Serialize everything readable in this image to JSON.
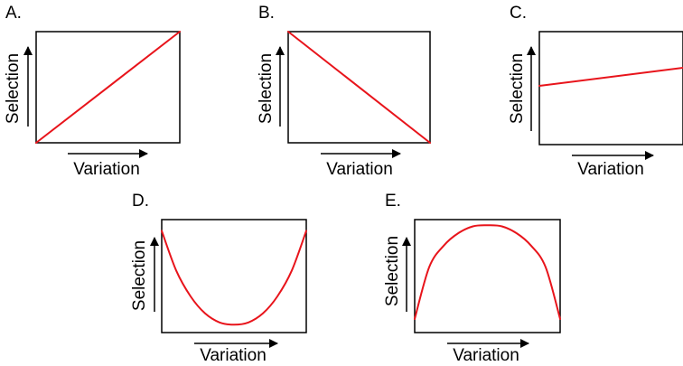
{
  "figure": {
    "accent_color": "#e8141b",
    "axis_color": "#000000"
  },
  "chart_data": [
    {
      "panel": "A.",
      "type": "line",
      "xlabel": "Variation",
      "ylabel": "Selection",
      "trend": "increasing",
      "x": [
        0,
        1
      ],
      "y": [
        0,
        1
      ],
      "xlim": [
        0,
        1
      ],
      "ylim": [
        0,
        1
      ],
      "grid": false
    },
    {
      "panel": "B.",
      "type": "line",
      "xlabel": "Variation",
      "ylabel": "Selection",
      "trend": "decreasing",
      "x": [
        0,
        1
      ],
      "y": [
        1,
        0
      ],
      "xlim": [
        0,
        1
      ],
      "ylim": [
        0,
        1
      ],
      "grid": false
    },
    {
      "panel": "C.",
      "type": "line",
      "xlabel": "Variation",
      "ylabel": "Selection",
      "trend": "slightly increasing",
      "x": [
        0,
        1
      ],
      "y": [
        0.52,
        0.68
      ],
      "xlim": [
        0,
        1
      ],
      "ylim": [
        0,
        1
      ],
      "grid": false
    },
    {
      "panel": "D.",
      "type": "line",
      "xlabel": "Variation",
      "ylabel": "Selection",
      "trend": "u-shaped",
      "x": [
        0,
        0.1,
        0.2,
        0.3,
        0.4,
        0.5,
        0.6,
        0.7,
        0.8,
        0.9,
        1
      ],
      "y": [
        0.9,
        0.55,
        0.32,
        0.17,
        0.09,
        0.07,
        0.09,
        0.17,
        0.32,
        0.55,
        0.9
      ],
      "xlim": [
        0,
        1
      ],
      "ylim": [
        0,
        1
      ],
      "grid": false
    },
    {
      "panel": "E.",
      "type": "line",
      "xlabel": "Variation",
      "ylabel": "Selection",
      "trend": "inverted-u",
      "x": [
        0,
        0.1,
        0.2,
        0.3,
        0.4,
        0.5,
        0.6,
        0.7,
        0.8,
        0.9,
        1
      ],
      "y": [
        0.12,
        0.58,
        0.77,
        0.88,
        0.94,
        0.95,
        0.94,
        0.88,
        0.77,
        0.58,
        0.12
      ],
      "xlim": [
        0,
        1
      ],
      "ylim": [
        0,
        1
      ],
      "grid": false
    }
  ]
}
